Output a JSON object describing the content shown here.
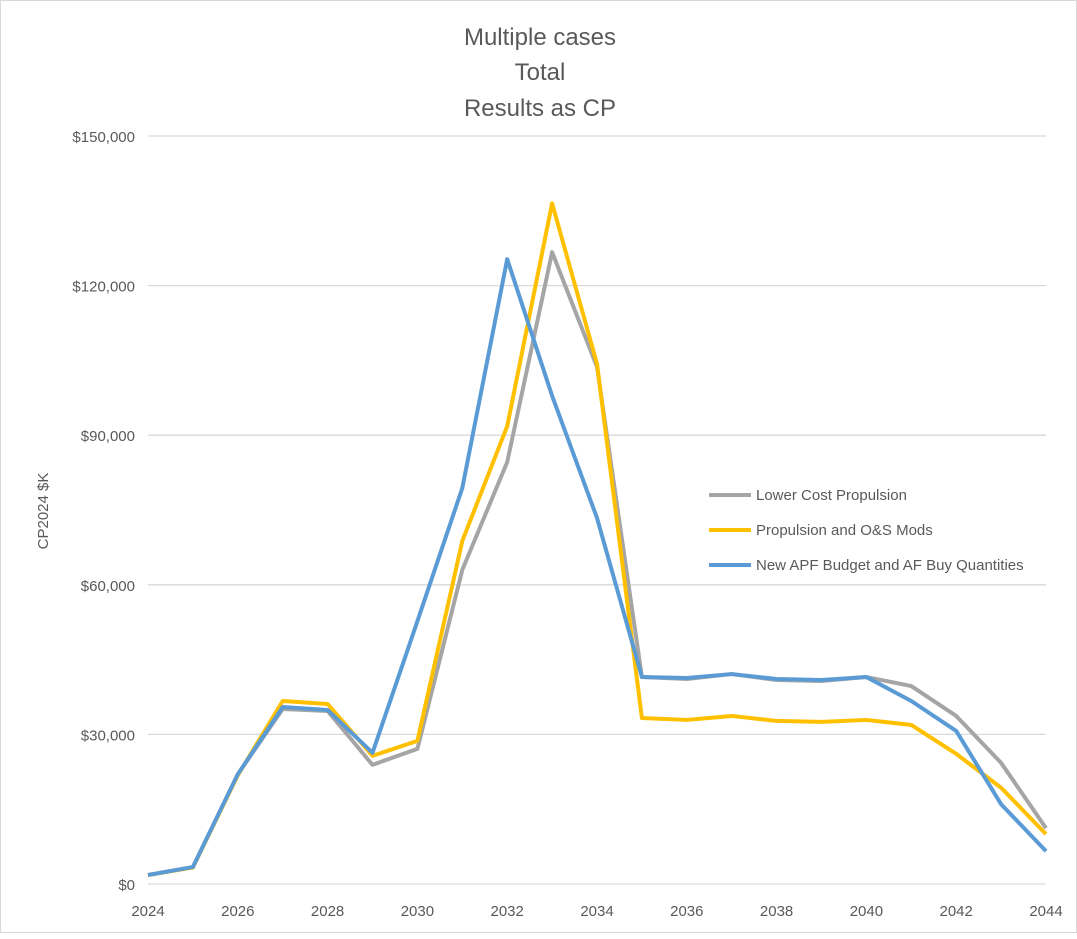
{
  "chart_data": {
    "type": "line",
    "title": [
      "Multiple cases",
      "Total",
      "Results as CP"
    ],
    "xlabel": "",
    "ylabel": "CP2024 $K",
    "ylim": [
      0,
      150000
    ],
    "yticks": [
      "$0",
      "$30,000",
      "$60,000",
      "$90,000",
      "$120,000",
      "$150,000"
    ],
    "ytick_values": [
      0,
      30000,
      60000,
      90000,
      120000,
      150000
    ],
    "xlim": [
      2024,
      2044
    ],
    "xticks": [
      "2024",
      "2026",
      "2028",
      "2030",
      "2032",
      "2034",
      "2036",
      "2038",
      "2040",
      "2042",
      "2044"
    ],
    "grid": true,
    "legend_position": "right",
    "x": [
      2024,
      2025,
      2026,
      2027,
      2028,
      2029,
      2030,
      2031,
      2032,
      2033,
      2034,
      2035,
      2036,
      2037,
      2038,
      2039,
      2040,
      2041,
      2042,
      2043,
      2044
    ],
    "series": [
      {
        "name": "Lower Cost Propulsion",
        "color": "#a5a5a5",
        "values": [
          1800,
          3400,
          22000,
          35100,
          34700,
          23900,
          27100,
          63000,
          84600,
          126700,
          103700,
          41500,
          41100,
          42100,
          40900,
          40700,
          41500,
          39700,
          33700,
          24300,
          11200
        ]
      },
      {
        "name": "Propulsion and O&S Mods",
        "color": "#ffc000",
        "values": [
          1800,
          3300,
          21800,
          36700,
          36100,
          25700,
          28700,
          68800,
          91800,
          136500,
          104300,
          33300,
          32900,
          33700,
          32700,
          32500,
          32900,
          31900,
          26100,
          19300,
          10000
        ]
      },
      {
        "name": "New APF Budget and AF Buy Quantities",
        "color": "#5b9bd5",
        "values": [
          1800,
          3400,
          22000,
          35500,
          34900,
          26300,
          52700,
          79400,
          125300,
          97900,
          73400,
          41500,
          41300,
          42100,
          41100,
          40900,
          41500,
          36700,
          30700,
          16000,
          6600
        ]
      }
    ]
  }
}
